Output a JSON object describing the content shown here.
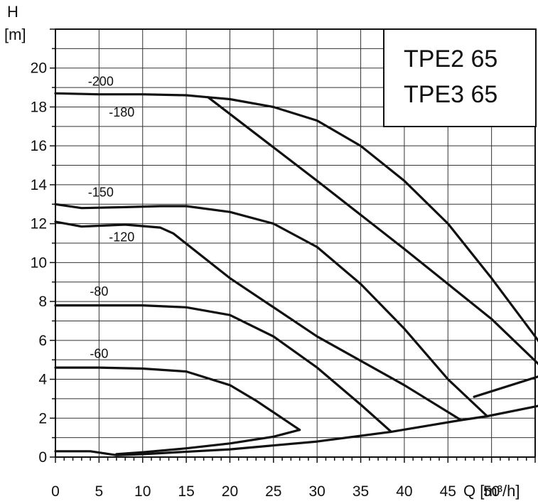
{
  "chart_data": {
    "type": "line",
    "title_lines": [
      "TPE2 65",
      "TPE3 65"
    ],
    "y_axis_symbol": "H",
    "y_axis_unit": "[m]",
    "x_axis_label": "Q [m³/h]",
    "xlim": [
      0,
      55
    ],
    "ylim": [
      0,
      22
    ],
    "x_ticks": [
      0,
      5,
      10,
      15,
      20,
      25,
      30,
      35,
      40,
      45,
      50
    ],
    "y_ticks": [
      0,
      2,
      4,
      6,
      8,
      10,
      12,
      14,
      16,
      18,
      20
    ],
    "grid": true,
    "series": [
      {
        "name": "-200",
        "x": [
          0,
          5,
          10,
          15,
          17.5,
          20,
          25,
          30,
          35,
          40,
          45,
          50,
          55,
          60
        ],
        "y": [
          18.7,
          18.65,
          18.65,
          18.6,
          18.5,
          18.4,
          18.0,
          17.3,
          16.0,
          14.2,
          12.0,
          9.2,
          6.2,
          3.1
        ]
      },
      {
        "name": "-180",
        "x": [
          17.5,
          30,
          40,
          50,
          56.5
        ],
        "y": [
          18.5,
          14.2,
          10.7,
          7.1,
          4.3
        ]
      },
      {
        "name": "-150",
        "x": [
          0,
          3,
          8,
          12,
          15,
          20,
          25,
          30,
          35,
          40,
          45,
          49.5
        ],
        "y": [
          13.0,
          12.8,
          12.85,
          12.9,
          12.9,
          12.6,
          12.0,
          10.8,
          8.9,
          6.6,
          4.0,
          2.1
        ]
      },
      {
        "name": "-120",
        "x": [
          0,
          3,
          8,
          12,
          13.5,
          20,
          30,
          40,
          46.5
        ],
        "y": [
          12.1,
          11.85,
          11.95,
          11.8,
          11.5,
          9.2,
          6.2,
          3.7,
          1.9
        ]
      },
      {
        "name": "-80",
        "x": [
          0,
          5,
          10,
          15,
          20,
          25,
          30,
          35,
          38.5
        ],
        "y": [
          7.8,
          7.8,
          7.8,
          7.7,
          7.3,
          6.2,
          4.6,
          2.7,
          1.3
        ]
      },
      {
        "name": "-60",
        "x": [
          0,
          5,
          10,
          15,
          20,
          23,
          28
        ],
        "y": [
          4.6,
          4.6,
          4.55,
          4.4,
          3.7,
          2.9,
          1.4
        ]
      },
      {
        "name": "",
        "x": [
          7,
          10,
          15,
          20,
          25,
          28
        ],
        "y": [
          0.15,
          0.25,
          0.45,
          0.7,
          1.05,
          1.4
        ]
      },
      {
        "name": "",
        "x": [
          0,
          4,
          7,
          10,
          20,
          30,
          38.5,
          46.5,
          49.5,
          55,
          60
        ],
        "y": [
          0.3,
          0.3,
          0.1,
          0.15,
          0.4,
          0.8,
          1.3,
          1.9,
          2.1,
          2.6,
          3.1
        ]
      },
      {
        "name": "",
        "x": [
          48,
          56.5
        ],
        "y": [
          3.1,
          4.3
        ]
      }
    ],
    "curve_labels": [
      {
        "text": "-200",
        "x": 5.2,
        "y": 19.1
      },
      {
        "text": "-180",
        "x": 7.6,
        "y": 17.5
      },
      {
        "text": "-150",
        "x": 5.2,
        "y": 13.4
      },
      {
        "text": "-120",
        "x": 7.6,
        "y": 11.1
      },
      {
        "text": "-80",
        "x": 5.0,
        "y": 8.3
      },
      {
        "text": "-60",
        "x": 5.0,
        "y": 5.1
      }
    ],
    "colors": {
      "line": "#111111",
      "grid": "#333333",
      "background": "#ffffff"
    }
  }
}
